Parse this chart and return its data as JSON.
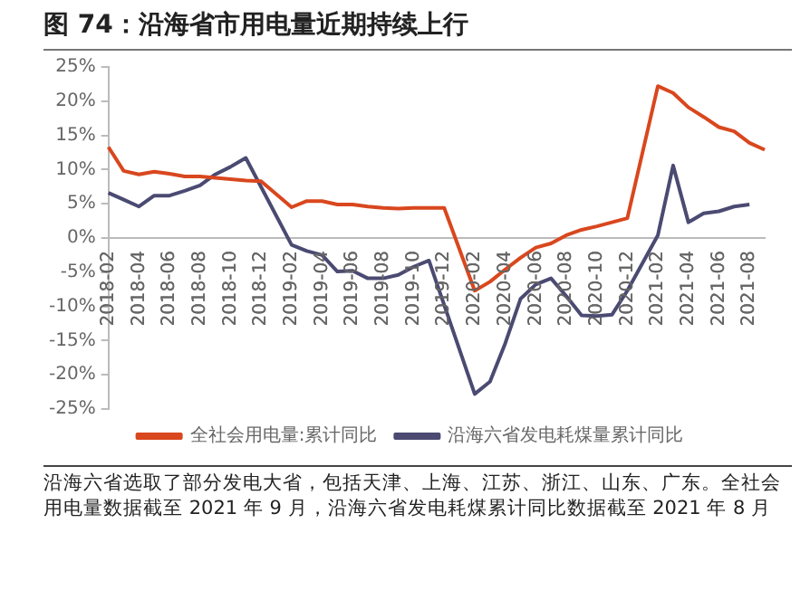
{
  "chart_data": {
    "type": "line",
    "title": "图 74：沿海省市用电量近期持续上行",
    "categories": [
      "2018-02",
      null,
      "2018-04",
      null,
      "2018-06",
      null,
      "2018-08",
      null,
      "2018-10",
      null,
      "2018-12",
      null,
      "2019-02",
      null,
      "2019-04",
      null,
      "2019-06",
      null,
      "2019-08",
      null,
      "2019-10",
      null,
      "2019-12",
      null,
      "2020-02",
      null,
      "2020-04",
      null,
      "2020-06",
      null,
      "2020-08",
      null,
      "2020-10",
      null,
      "2020-12",
      null,
      "2021-02",
      null,
      "2021-04",
      null,
      "2021-06",
      null,
      "2021-08",
      null
    ],
    "series": [
      {
        "name": "全社会用电量:累计同比",
        "color": "#d9471e",
        "values": [
          13.3,
          9.8,
          9.3,
          9.7,
          9.4,
          9.0,
          9.0,
          8.8,
          8.6,
          8.4,
          8.3,
          null,
          4.5,
          5.4,
          5.4,
          4.9,
          4.9,
          4.6,
          4.4,
          4.3,
          4.4,
          4.4,
          4.4,
          null,
          -7.7,
          -6.4,
          -4.6,
          -2.9,
          -1.4,
          -0.8,
          0.4,
          1.2,
          1.7,
          2.3,
          2.9,
          null,
          22.2,
          21.2,
          19.1,
          17.7,
          16.2,
          15.6,
          13.9,
          12.9
        ]
      },
      {
        "name": "沿海六省发电耗煤量累计同比",
        "color": "#4b4a72",
        "values": [
          6.6,
          5.6,
          4.6,
          6.2,
          6.2,
          6.9,
          7.7,
          9.3,
          10.4,
          11.7,
          null,
          null,
          -1.0,
          -1.9,
          -2.5,
          -4.9,
          -4.8,
          -5.9,
          -5.9,
          -5.4,
          -4.2,
          -3.3,
          null,
          null,
          -22.8,
          -21.0,
          -15.4,
          -8.9,
          -6.8,
          -5.9,
          -8.5,
          -11.3,
          -11.4,
          -11.2,
          -7.7,
          null,
          0.4,
          10.6,
          2.3,
          3.6,
          3.9,
          4.6,
          4.9,
          null
        ]
      }
    ],
    "ylim": [
      -25,
      25
    ],
    "yticks": [
      {
        "value": -25,
        "label": "-25%"
      },
      {
        "value": -20,
        "label": "-20%"
      },
      {
        "value": -15,
        "label": "-15%"
      },
      {
        "value": -10,
        "label": "-10%"
      },
      {
        "value": -5,
        "label": "-5%"
      },
      {
        "value": 0,
        "label": "0%"
      },
      {
        "value": 5,
        "label": "5%"
      },
      {
        "value": 10,
        "label": "10%"
      },
      {
        "value": 15,
        "label": "15%"
      },
      {
        "value": 20,
        "label": "20%"
      },
      {
        "value": 25,
        "label": "25%"
      }
    ],
    "grid": false,
    "legend": "bottom",
    "marker": "none",
    "line_style": "solid",
    "annotations": [
      "沿海六省选取了部分发电大省，包括天津、上海、江苏、浙江、山东、广东。全社会用电量数据截至 2021 年 9 月，沿海六省发电耗煤累计同比数据截至 2021 年 8 月"
    ]
  }
}
